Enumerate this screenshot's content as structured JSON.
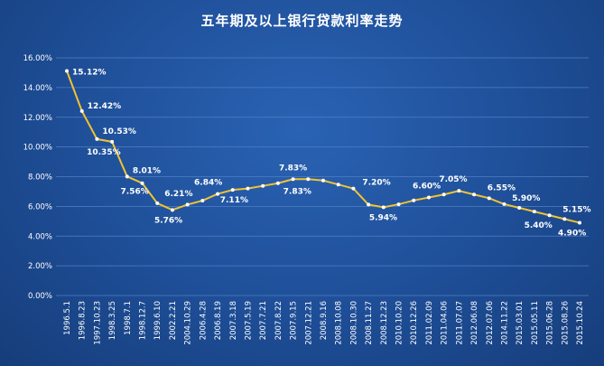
{
  "chart_data": {
    "type": "line",
    "title": "五年期及以上银行贷款利率走势",
    "xlabel": "",
    "ylabel": "",
    "ylim": [
      0,
      16
    ],
    "y_ticks": [
      "0.00%",
      "2.00%",
      "4.00%",
      "6.00%",
      "8.00%",
      "10.00%",
      "12.00%",
      "14.00%",
      "16.00%"
    ],
    "grid": true,
    "legend": "none",
    "colors": {
      "background": "#1e4e97",
      "line": "#f2c230",
      "marker": "#ffffff",
      "grid": "#4f7fc4",
      "text": "#ffffff"
    },
    "points": [
      {
        "x": "1996.5.1",
        "y": 15.12,
        "label": "15.12%"
      },
      {
        "x": "1996.8.23",
        "y": 12.42,
        "label": "12.42%"
      },
      {
        "x": "1997.10.23",
        "y": 10.53,
        "label": "10.53%"
      },
      {
        "x": "1998.3.25",
        "y": 10.35,
        "label": "10.35%"
      },
      {
        "x": "1998.7.1",
        "y": 8.01,
        "label": "8.01%"
      },
      {
        "x": "1998.12.7",
        "y": 7.56,
        "label": "7.56%"
      },
      {
        "x": "1999.6.10",
        "y": 6.21,
        "label": "6.21%"
      },
      {
        "x": "2002.2.21",
        "y": 5.76,
        "label": "5.76%"
      },
      {
        "x": "2004.10.29",
        "y": 6.12,
        "label": ""
      },
      {
        "x": "2006.4.28",
        "y": 6.39,
        "label": ""
      },
      {
        "x": "2006.8.19",
        "y": 6.84,
        "label": "6.84%"
      },
      {
        "x": "2007.3.18",
        "y": 7.11,
        "label": "7.11%"
      },
      {
        "x": "2007.5.19",
        "y": 7.2,
        "label": ""
      },
      {
        "x": "2007.7.21",
        "y": 7.38,
        "label": ""
      },
      {
        "x": "2007.8.22",
        "y": 7.56,
        "label": ""
      },
      {
        "x": "2007.9.15",
        "y": 7.83,
        "label": "7.83%"
      },
      {
        "x": "2007.12.21",
        "y": 7.83,
        "label": "7.83%"
      },
      {
        "x": "2008.9.16",
        "y": 7.74,
        "label": ""
      },
      {
        "x": "2008.10.08",
        "y": 7.47,
        "label": ""
      },
      {
        "x": "2008.10.30",
        "y": 7.2,
        "label": "7.20%"
      },
      {
        "x": "2008.11.27",
        "y": 6.12,
        "label": ""
      },
      {
        "x": "2008.12.23",
        "y": 5.94,
        "label": "5.94%"
      },
      {
        "x": "2010.10.20",
        "y": 6.14,
        "label": ""
      },
      {
        "x": "2010.12.26",
        "y": 6.4,
        "label": ""
      },
      {
        "x": "2011.02.09",
        "y": 6.6,
        "label": "6.60%"
      },
      {
        "x": "2011.04.06",
        "y": 6.8,
        "label": ""
      },
      {
        "x": "2011.07.07",
        "y": 7.05,
        "label": "7.05%"
      },
      {
        "x": "2012.06.08",
        "y": 6.8,
        "label": ""
      },
      {
        "x": "2012.07.06",
        "y": 6.55,
        "label": "6.55%"
      },
      {
        "x": "2014.11.22",
        "y": 6.15,
        "label": ""
      },
      {
        "x": "2015.03.01",
        "y": 5.9,
        "label": "5.90%"
      },
      {
        "x": "2015.05.11",
        "y": 5.65,
        "label": ""
      },
      {
        "x": "2015.06.28",
        "y": 5.4,
        "label": "5.40%"
      },
      {
        "x": "2015.08.26",
        "y": 5.15,
        "label": "5.15%"
      },
      {
        "x": "2015.10.24",
        "y": 4.9,
        "label": "4.90%"
      }
    ]
  }
}
